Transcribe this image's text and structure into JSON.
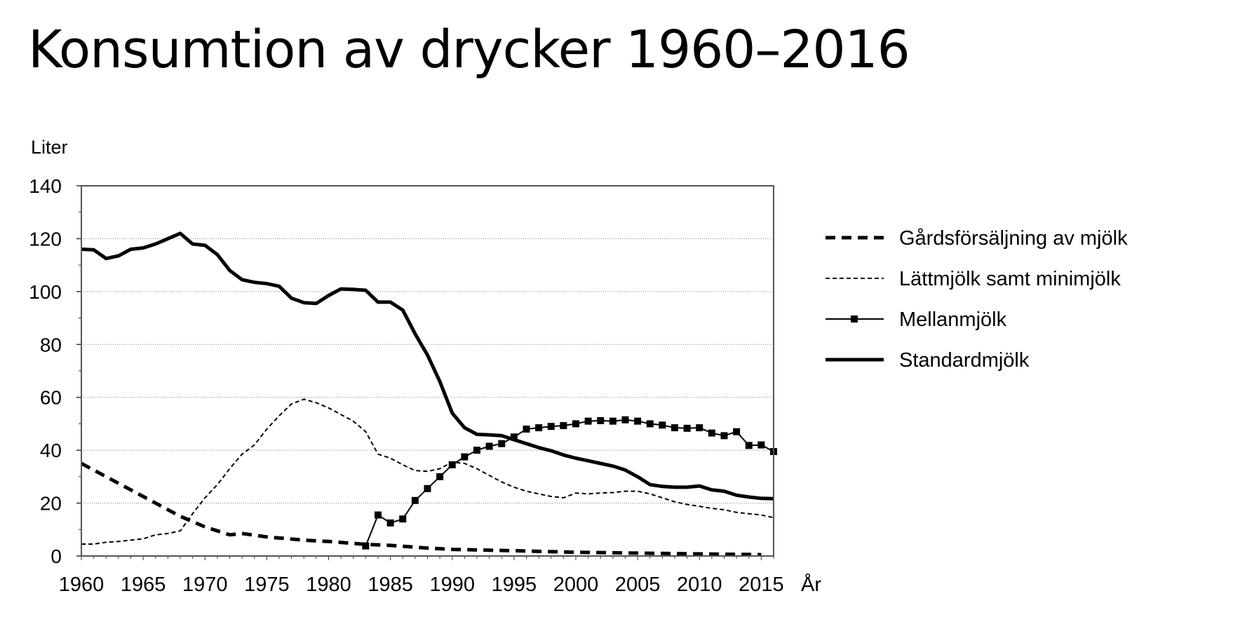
{
  "title": "Konsumtion av drycker 1960–2016",
  "chart_data": {
    "type": "line",
    "ylabel": "Liter",
    "xlabel": "År",
    "xlim": [
      1960,
      2016
    ],
    "ylim": [
      0,
      140
    ],
    "yticks": [
      0,
      20,
      40,
      60,
      80,
      100,
      120,
      140
    ],
    "xticks": [
      1960,
      1965,
      1970,
      1975,
      1980,
      1985,
      1990,
      1995,
      2000,
      2005,
      2010,
      2015
    ],
    "grid": "horizontal dotted",
    "legend_position": "right",
    "series": [
      {
        "name": "Gårdsförsäljning av mjölk",
        "style": "thick-dashed",
        "x": [
          1960,
          1962,
          1964,
          1966,
          1968,
          1970,
          1972,
          1973,
          1975,
          1978,
          1980,
          1983,
          1985,
          1988,
          1990,
          1995,
          2000,
          2005,
          2010,
          2015
        ],
        "y": [
          35,
          30,
          25,
          20,
          15,
          11,
          8,
          8.5,
          7.2,
          6,
          5.5,
          4.4,
          4,
          3,
          2.5,
          2,
          1.4,
          1.1,
          0.8,
          0.5
        ]
      },
      {
        "name": "Lättmjölk samt minimjölk",
        "style": "thin-dashed",
        "x": [
          1960,
          1961,
          1962,
          1963,
          1964,
          1965,
          1966,
          1967,
          1968,
          1969,
          1970,
          1971,
          1972,
          1973,
          1974,
          1975,
          1976,
          1977,
          1978,
          1979,
          1980,
          1981,
          1982,
          1983,
          1984,
          1985,
          1986,
          1987,
          1988,
          1989,
          1990,
          1991,
          1992,
          1993,
          1994,
          1995,
          1996,
          1997,
          1998,
          1999,
          2000,
          2001,
          2002,
          2003,
          2004,
          2005,
          2006,
          2007,
          2008,
          2009,
          2010,
          2011,
          2012,
          2013,
          2014,
          2015,
          2016
        ],
        "y": [
          4.5,
          4.5,
          5.2,
          5.5,
          6,
          6.5,
          8,
          8.5,
          9.5,
          16,
          22,
          27,
          33,
          38.5,
          42,
          48,
          53,
          57.5,
          59.3,
          58,
          56,
          53.5,
          51,
          47,
          38.5,
          37,
          34.5,
          32.3,
          32,
          33,
          35.5,
          35,
          33,
          30.5,
          28,
          26,
          24.5,
          23.5,
          22.5,
          22,
          23.8,
          23.5,
          23.8,
          24,
          24.5,
          24.5,
          23.5,
          22,
          20.5,
          19.5,
          18.8,
          18,
          17.5,
          16.5,
          16,
          15.5,
          14.5
        ]
      },
      {
        "name": "Mellanmjölk",
        "style": "thin-solid-square-markers",
        "x": [
          1983,
          1984,
          1985,
          1986,
          1987,
          1988,
          1989,
          1990,
          1991,
          1992,
          1993,
          1994,
          1995,
          1996,
          1997,
          1998,
          1999,
          2000,
          2001,
          2002,
          2003,
          2004,
          2005,
          2006,
          2007,
          2008,
          2009,
          2010,
          2011,
          2012,
          2013,
          2014,
          2015,
          2016
        ],
        "y": [
          3.8,
          15.5,
          12.5,
          14,
          21,
          25.5,
          30,
          34.5,
          37.5,
          40,
          41.5,
          42.5,
          45,
          48,
          48.5,
          49,
          49.3,
          50,
          51,
          51.2,
          51,
          51.5,
          51,
          50,
          49.5,
          48.5,
          48.3,
          48.5,
          46.5,
          45.5,
          47,
          41.8,
          42,
          39.5
        ]
      },
      {
        "name": "Standardmjölk",
        "style": "thick-solid",
        "x": [
          1960,
          1961,
          1962,
          1963,
          1964,
          1965,
          1966,
          1967,
          1968,
          1969,
          1970,
          1971,
          1972,
          1973,
          1974,
          1975,
          1976,
          1977,
          1978,
          1979,
          1980,
          1981,
          1982,
          1983,
          1984,
          1985,
          1986,
          1987,
          1988,
          1989,
          1990,
          1991,
          1992,
          1993,
          1994,
          1995,
          1996,
          1997,
          1998,
          1999,
          2000,
          2001,
          2002,
          2003,
          2004,
          2005,
          2006,
          2007,
          2008,
          2009,
          2010,
          2011,
          2012,
          2013,
          2014,
          2015,
          2016
        ],
        "y": [
          116,
          115.8,
          112.5,
          113.5,
          116,
          116.5,
          118,
          120,
          122,
          118,
          117.5,
          114,
          108,
          104.5,
          103.5,
          103,
          102,
          97.5,
          95.8,
          95.5,
          98.5,
          101,
          100.8,
          100.5,
          96,
          96,
          93,
          84,
          76,
          66,
          54,
          48.5,
          46,
          45.8,
          45.5,
          44,
          42.5,
          41,
          39.8,
          38.2,
          37,
          36,
          35,
          34,
          32.5,
          30,
          27,
          26.3,
          26,
          26,
          26.5,
          25,
          24.5,
          23,
          22.3,
          21.8,
          21.7
        ]
      }
    ]
  }
}
